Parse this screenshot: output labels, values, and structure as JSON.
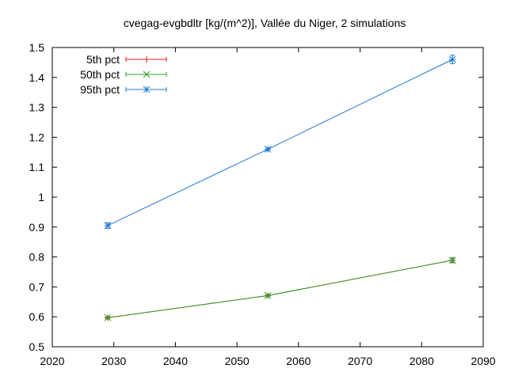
{
  "chart_data": {
    "type": "line",
    "title": "cvegag-evgbdltr [kg/(m^2)], Vallée du Niger, 2 simulations",
    "xlabel": "",
    "ylabel": "",
    "xlim": [
      2020,
      2090
    ],
    "ylim": [
      0.5,
      1.5
    ],
    "x_ticks": [
      "2020",
      "2030",
      "2040",
      "2050",
      "2060",
      "2070",
      "2080",
      "2090"
    ],
    "y_ticks": [
      "0.5",
      "0.6",
      "0.7",
      "0.8",
      "0.9",
      "1",
      "1.1",
      "1.2",
      "1.3",
      "1.4",
      "1.5"
    ],
    "grid": false,
    "legend_position": "top-left",
    "series": [
      {
        "name": "5th pct",
        "color": "#e41a1c",
        "marker": "plus",
        "points": [
          {
            "x": 2029,
            "y": 0.597,
            "err": 0.004
          },
          {
            "x": 2055,
            "y": 0.671,
            "err": 0.004
          },
          {
            "x": 2085,
            "y": 0.789,
            "err": 0.008
          }
        ]
      },
      {
        "name": "50th pct",
        "color": "#2ca02c",
        "marker": "cross",
        "points": [
          {
            "x": 2029,
            "y": 0.597,
            "err": 0.004
          },
          {
            "x": 2055,
            "y": 0.671,
            "err": 0.004
          },
          {
            "x": 2085,
            "y": 0.789,
            "err": 0.008
          }
        ]
      },
      {
        "name": "95th pct",
        "color": "#1f77d4",
        "marker": "star",
        "points": [
          {
            "x": 2029,
            "y": 0.905,
            "err": 0.009
          },
          {
            "x": 2055,
            "y": 1.16,
            "err": 0.005
          },
          {
            "x": 2085,
            "y": 1.46,
            "err": 0.014
          }
        ]
      }
    ]
  }
}
